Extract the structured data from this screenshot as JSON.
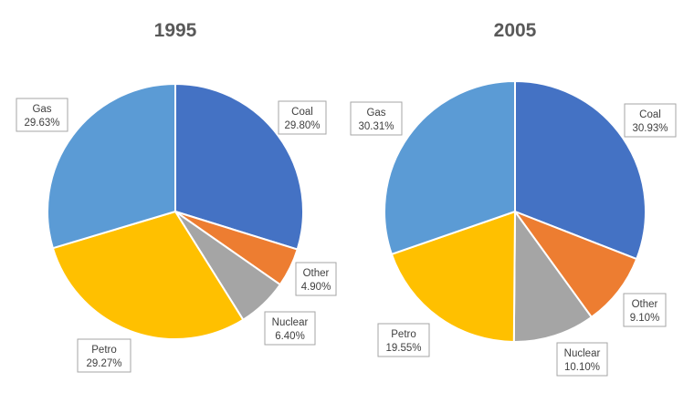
{
  "chart_data": [
    {
      "type": "pie",
      "title": "1995",
      "slices": [
        {
          "name": "Coal",
          "value": 29.8,
          "label": "29.80%",
          "color": "#4472C4"
        },
        {
          "name": "Other",
          "value": 4.9,
          "label": "4.90%",
          "color": "#ED7D31"
        },
        {
          "name": "Nuclear",
          "value": 6.4,
          "label": "6.40%",
          "color": "#A5A5A5"
        },
        {
          "name": "Petro",
          "value": 29.27,
          "label": "29.27%",
          "color": "#FFC000"
        },
        {
          "name": "Gas",
          "value": 29.63,
          "label": "29.63%",
          "color": "#5B9BD5"
        }
      ]
    },
    {
      "type": "pie",
      "title": "2005",
      "slices": [
        {
          "name": "Coal",
          "value": 30.93,
          "label": "30.93%",
          "color": "#4472C4"
        },
        {
          "name": "Other",
          "value": 9.1,
          "label": "9.10%",
          "color": "#ED7D31"
        },
        {
          "name": "Nuclear",
          "value": 10.1,
          "label": "10.10%",
          "color": "#A5A5A5"
        },
        {
          "name": "Petro",
          "value": 19.55,
          "label": "19.55%",
          "color": "#FFC000"
        },
        {
          "name": "Gas",
          "value": 30.31,
          "label": "30.31%",
          "color": "#5B9BD5"
        }
      ]
    }
  ]
}
